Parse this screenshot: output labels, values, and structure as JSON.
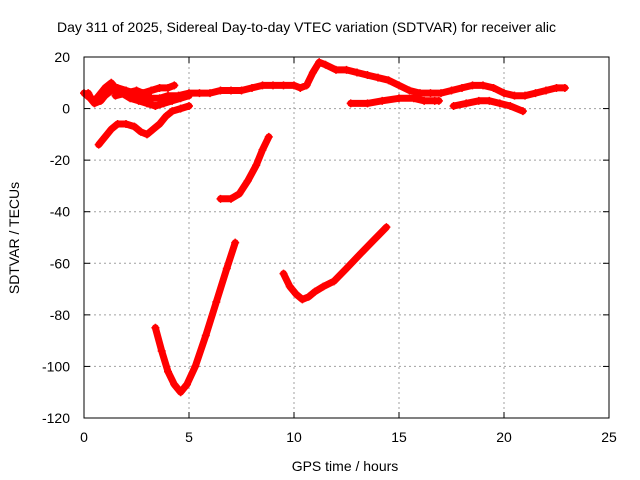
{
  "chart_data": {
    "type": "scatter",
    "title": "Day 311 of 2025, Sidereal Day-to-day VTEC variation (SDTVAR) for receiver alic",
    "xlabel": "GPS time / hours",
    "ylabel": "SDTVAR / TECUs",
    "xlim": [
      0,
      25
    ],
    "ylim": [
      -120,
      20
    ],
    "x_ticks": [
      0,
      5,
      10,
      15,
      20,
      25
    ],
    "y_ticks": [
      -120,
      -100,
      -80,
      -60,
      -40,
      -20,
      0,
      20
    ],
    "grid": true,
    "marker": "+",
    "color": "#ff0000",
    "series": [
      {
        "points": [
          [
            0.0,
            6
          ],
          [
            0.3,
            4
          ],
          [
            0.5,
            2
          ],
          [
            0.8,
            3
          ],
          [
            1.0,
            5
          ],
          [
            1.3,
            7
          ],
          [
            1.6,
            8
          ],
          [
            2.0,
            7
          ],
          [
            2.4,
            6
          ],
          [
            2.8,
            5
          ],
          [
            3.2,
            4
          ],
          [
            3.6,
            4
          ],
          [
            4.0,
            5
          ],
          [
            4.5,
            5
          ],
          [
            5.0,
            6
          ],
          [
            5.5,
            6
          ],
          [
            6.0,
            6
          ],
          [
            6.5,
            7
          ],
          [
            7.0,
            7
          ],
          [
            7.5,
            7
          ],
          [
            8.0,
            8
          ],
          [
            8.5,
            9
          ],
          [
            9.0,
            9
          ],
          [
            9.5,
            9
          ],
          [
            10.0,
            9
          ],
          [
            10.3,
            8
          ],
          [
            10.6,
            9
          ],
          [
            10.9,
            14
          ],
          [
            11.2,
            18
          ],
          [
            11.5,
            17
          ],
          [
            12.0,
            15
          ],
          [
            12.5,
            15
          ],
          [
            13.0,
            14
          ],
          [
            13.5,
            13
          ],
          [
            14.0,
            12
          ],
          [
            14.5,
            11
          ],
          [
            15.0,
            9
          ],
          [
            15.5,
            7
          ],
          [
            16.0,
            6
          ],
          [
            16.5,
            6
          ],
          [
            17.0,
            6
          ],
          [
            17.5,
            7
          ],
          [
            18.0,
            8
          ],
          [
            18.5,
            9
          ],
          [
            19.0,
            9
          ],
          [
            19.5,
            8
          ],
          [
            20.0,
            6
          ],
          [
            20.5,
            5
          ],
          [
            21.0,
            5
          ],
          [
            21.5,
            6
          ],
          [
            22.0,
            7
          ],
          [
            22.5,
            8
          ],
          [
            22.9,
            8
          ]
        ]
      },
      {
        "points": [
          [
            0.2,
            6
          ],
          [
            0.4,
            3
          ],
          [
            0.6,
            4
          ],
          [
            1.0,
            8
          ],
          [
            1.3,
            10
          ],
          [
            1.5,
            8
          ],
          [
            1.8,
            6
          ],
          [
            2.2,
            4
          ],
          [
            2.6,
            3
          ],
          [
            3.0,
            2
          ],
          [
            3.4,
            1
          ],
          [
            3.8,
            2
          ],
          [
            4.2,
            3
          ],
          [
            4.6,
            4
          ],
          [
            5.0,
            5
          ]
        ]
      },
      {
        "points": [
          [
            1.5,
            5
          ],
          [
            2.0,
            6
          ],
          [
            2.5,
            7
          ],
          [
            2.8,
            6
          ],
          [
            3.2,
            7
          ],
          [
            3.6,
            8
          ],
          [
            4.0,
            8
          ],
          [
            4.3,
            9
          ]
        ]
      },
      {
        "points": [
          [
            0.7,
            -14
          ],
          [
            1.0,
            -11
          ],
          [
            1.3,
            -8
          ],
          [
            1.6,
            -6
          ],
          [
            2.0,
            -6
          ],
          [
            2.4,
            -7
          ],
          [
            2.7,
            -9
          ],
          [
            3.0,
            -10
          ],
          [
            3.3,
            -8
          ],
          [
            3.6,
            -6
          ],
          [
            3.9,
            -3
          ],
          [
            4.2,
            -1
          ],
          [
            4.6,
            0
          ],
          [
            5.0,
            1
          ]
        ]
      },
      {
        "points": [
          [
            12.7,
            2
          ],
          [
            13.5,
            2
          ],
          [
            14.2,
            3
          ],
          [
            15.0,
            4
          ],
          [
            15.7,
            4
          ],
          [
            16.2,
            3
          ],
          [
            16.7,
            3
          ],
          [
            16.9,
            3
          ]
        ]
      },
      {
        "points": [
          [
            17.6,
            1
          ],
          [
            18.2,
            2
          ],
          [
            18.8,
            3
          ],
          [
            19.3,
            3
          ],
          [
            19.8,
            2
          ],
          [
            20.3,
            1
          ],
          [
            20.9,
            -1
          ]
        ]
      },
      {
        "points": [
          [
            6.5,
            -35
          ],
          [
            7.0,
            -35
          ],
          [
            7.4,
            -33
          ],
          [
            7.8,
            -28
          ],
          [
            8.2,
            -22
          ],
          [
            8.5,
            -16
          ],
          [
            8.8,
            -11
          ]
        ]
      },
      {
        "points": [
          [
            3.4,
            -85
          ],
          [
            3.7,
            -94
          ],
          [
            4.0,
            -102
          ],
          [
            4.3,
            -107
          ],
          [
            4.6,
            -110
          ],
          [
            4.9,
            -107
          ],
          [
            5.3,
            -100
          ],
          [
            5.8,
            -88
          ],
          [
            6.3,
            -75
          ],
          [
            6.8,
            -62
          ],
          [
            7.2,
            -52
          ]
        ]
      },
      {
        "points": [
          [
            9.5,
            -64
          ],
          [
            9.8,
            -69
          ],
          [
            10.1,
            -72
          ],
          [
            10.4,
            -74
          ],
          [
            10.7,
            -73
          ],
          [
            11.0,
            -71
          ],
          [
            11.4,
            -69
          ],
          [
            11.9,
            -67
          ],
          [
            12.5,
            -62
          ],
          [
            13.2,
            -56
          ],
          [
            13.8,
            -51
          ],
          [
            14.4,
            -46
          ]
        ]
      }
    ]
  }
}
